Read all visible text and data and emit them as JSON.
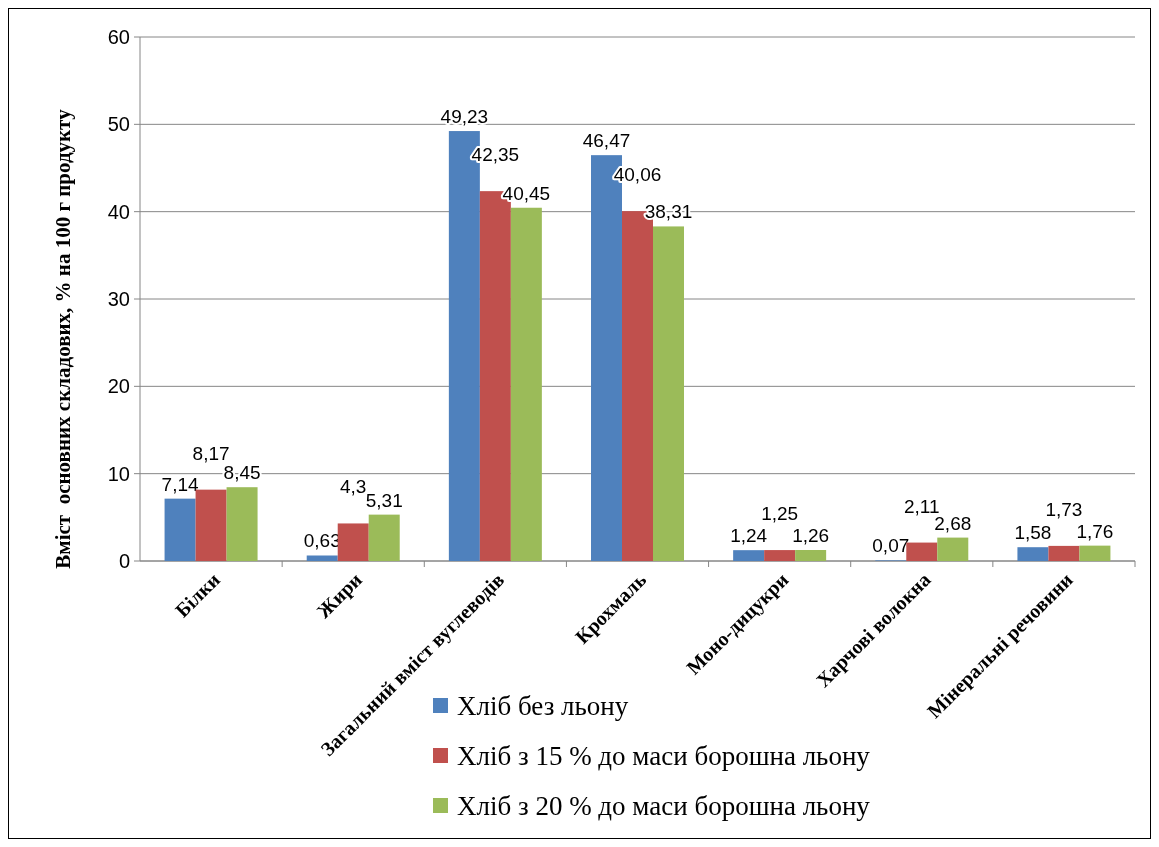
{
  "chart_data": {
    "type": "bar",
    "ylabel": "Вміст  основних складових, % на 100 г продукту",
    "categories": [
      "Білки",
      "Жири",
      "Загальний вміст вуглеводів",
      "Крохмаль",
      "Моно-дицукри",
      "Харчові волокна",
      "Мінеральні речовини"
    ],
    "series": [
      {
        "name": "Хліб без льону",
        "color": "#4f81bd",
        "values": [
          7.14,
          0.63,
          49.23,
          46.47,
          1.24,
          0.07,
          1.58
        ],
        "value_labels": [
          "7,14",
          "0,63",
          "49,23",
          "46,47",
          "1,24",
          "0,07",
          "1,58"
        ]
      },
      {
        "name": "Хліб з 15 % до маси борошна льону",
        "color": "#c0504d",
        "values": [
          8.17,
          4.3,
          42.35,
          40.06,
          1.25,
          2.11,
          1.73
        ],
        "value_labels": [
          "8,17",
          "4,3",
          "42,35",
          "40,06",
          "1,25",
          "2,11",
          "1,73"
        ]
      },
      {
        "name": "Хліб з 20 % до маси борошна льону",
        "color": "#9bbb59",
        "values": [
          8.45,
          5.31,
          40.45,
          38.31,
          1.26,
          2.68,
          1.76
        ],
        "value_labels": [
          "8,45",
          "5,31",
          "40,45",
          "38,31",
          "1,26",
          "2,68",
          "1,76"
        ]
      }
    ],
    "ylim": [
      0,
      60
    ],
    "yticks": [
      0,
      10,
      20,
      30,
      40,
      50,
      60
    ],
    "grid": "y",
    "legend": "bottom"
  }
}
